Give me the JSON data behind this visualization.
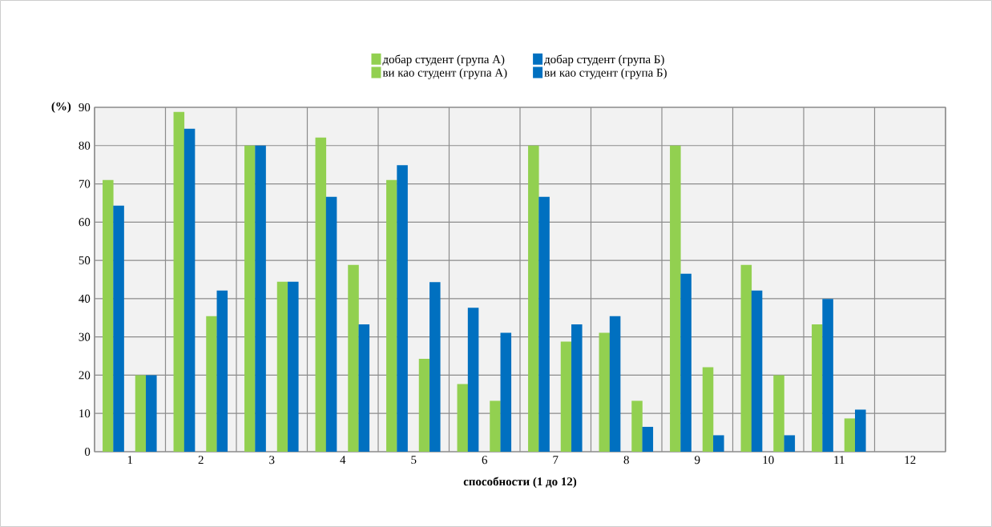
{
  "chart_data": {
    "type": "bar",
    "xlabel": "способности (1 до 12)",
    "ylabel": "(%)",
    "categories": [
      "1",
      "2",
      "3",
      "4",
      "5",
      "6",
      "7",
      "8",
      "9",
      "10",
      "11",
      "12"
    ],
    "series": [
      {
        "name": "добар студент (група А)",
        "color": "#92d050",
        "values": [
          71,
          88.8,
          80,
          82.1,
          71,
          17.7,
          80,
          31.1,
          80,
          48.8,
          33.3,
          null
        ]
      },
      {
        "name": "добар студент (група Б)",
        "color": "#0070c0",
        "values": [
          64.3,
          84.4,
          80,
          66.6,
          74.9,
          37.6,
          66.6,
          35.4,
          46.5,
          42.1,
          39.9,
          null
        ]
      },
      {
        "name": "ви као студент (група А)",
        "color": "#92d050",
        "values": [
          20,
          35.4,
          44.4,
          48.8,
          24.3,
          13.3,
          28.8,
          13.3,
          22.1,
          20,
          8.7,
          null
        ]
      },
      {
        "name": "ви као студент (група Б)",
        "color": "#0070c0",
        "values": [
          20,
          42.1,
          44.4,
          33.3,
          44.3,
          31.1,
          33.3,
          6.5,
          4.3,
          4.3,
          11,
          null
        ]
      }
    ],
    "ylim": [
      0,
      90
    ],
    "yticks": [
      0,
      10,
      20,
      30,
      40,
      50,
      60,
      70,
      80,
      90
    ],
    "grid": true,
    "legend": "top"
  }
}
